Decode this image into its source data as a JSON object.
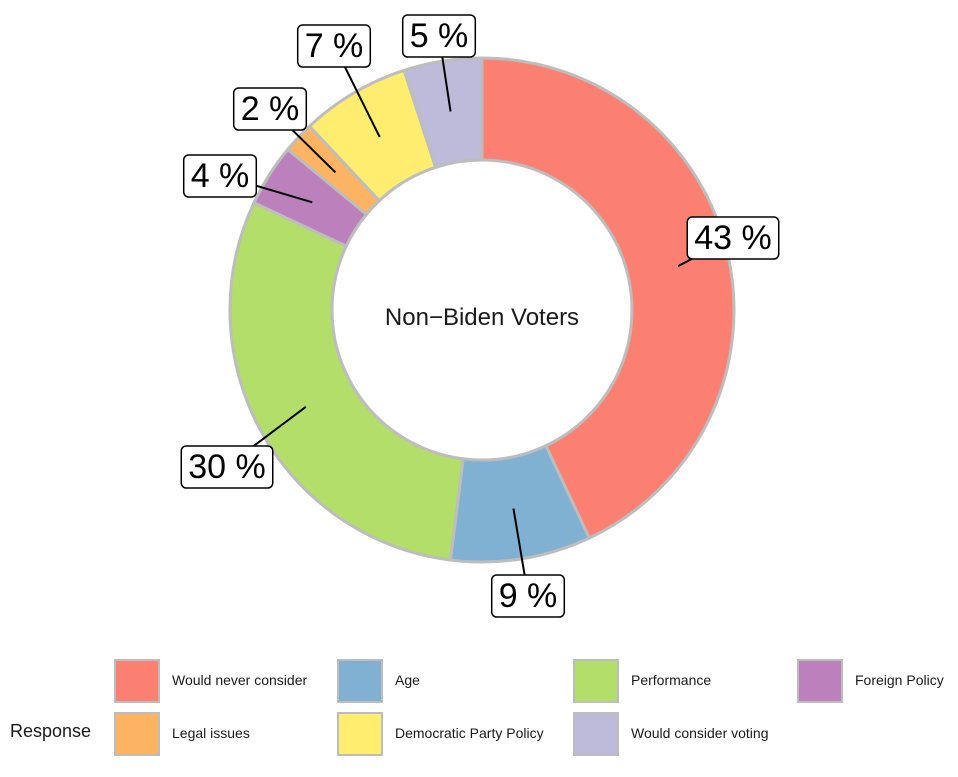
{
  "chart_data": {
    "type": "pie",
    "donut": true,
    "center_label": "Non−Biden Voters",
    "slices": [
      {
        "category": "Would never consider",
        "value": 43,
        "label": "43 %",
        "color": "#fb8072"
      },
      {
        "category": "Age",
        "value": 9,
        "label": "9 %",
        "color": "#80b1d3"
      },
      {
        "category": "Performance",
        "value": 30,
        "label": "30 %",
        "color": "#b3de69"
      },
      {
        "category": "Foreign Policy",
        "value": 4,
        "label": "4 %",
        "color": "#bc80bd"
      },
      {
        "category": "Legal issues",
        "value": 2,
        "label": "2 %",
        "color": "#fdb462"
      },
      {
        "category": "Democratic Party Policy",
        "value": 7,
        "label": "7 %",
        "color": "#ffed6f"
      },
      {
        "category": "Would consider voting",
        "value": 5,
        "label": "5 %",
        "color": "#bebada"
      }
    ],
    "legend": {
      "title": "Response",
      "position": "bottom"
    },
    "slice_outline_color": "#bdbdbd"
  }
}
